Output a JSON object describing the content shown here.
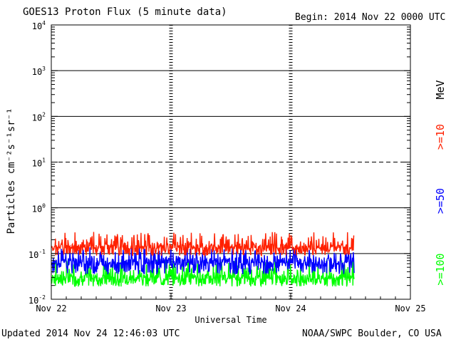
{
  "title": "GOES13 Proton Flux (5 minute data)",
  "begin": "Begin: 2014 Nov 22 0000 UTC",
  "updated": "Updated 2014 Nov 24 12:46:03 UTC",
  "credit": "NOAA/SWPC Boulder, CO USA",
  "chart_data": {
    "type": "line",
    "title": "GOES13 Proton Flux (5 minute data)",
    "xlabel": "Universal Time",
    "ylabel": "Particles cm⁻²s⁻¹sr⁻¹",
    "yscale": "log",
    "ylim": [
      0.01,
      10000
    ],
    "xlim_days": [
      0,
      3
    ],
    "y_tick_labels": [
      {
        "base": "10",
        "exp": "-2",
        "value": 0.01
      },
      {
        "base": "10",
        "exp": "-1",
        "value": 0.1
      },
      {
        "base": "10",
        "exp": "0",
        "value": 1
      },
      {
        "base": "10",
        "exp": "1",
        "value": 10
      },
      {
        "base": "10",
        "exp": "2",
        "value": 100
      },
      {
        "base": "10",
        "exp": "3",
        "value": 1000
      },
      {
        "base": "10",
        "exp": "4",
        "value": 10000
      }
    ],
    "x_tick_labels": [
      "Nov 22",
      "Nov 23",
      "Nov 24",
      "Nov 25"
    ],
    "energy_unit_label": "MeV",
    "series": [
      {
        "name": ">=10",
        "color": "#ff2000",
        "typical": 0.13,
        "min": 0.09,
        "max": 0.3
      },
      {
        "name": ">=50",
        "color": "#0000ff",
        "typical": 0.06,
        "min": 0.035,
        "max": 0.14
      },
      {
        "name": ">=100",
        "color": "#00ff00",
        "typical": 0.028,
        "min": 0.019,
        "max": 0.075
      }
    ],
    "data_end_day": 2.53,
    "grid": true
  }
}
